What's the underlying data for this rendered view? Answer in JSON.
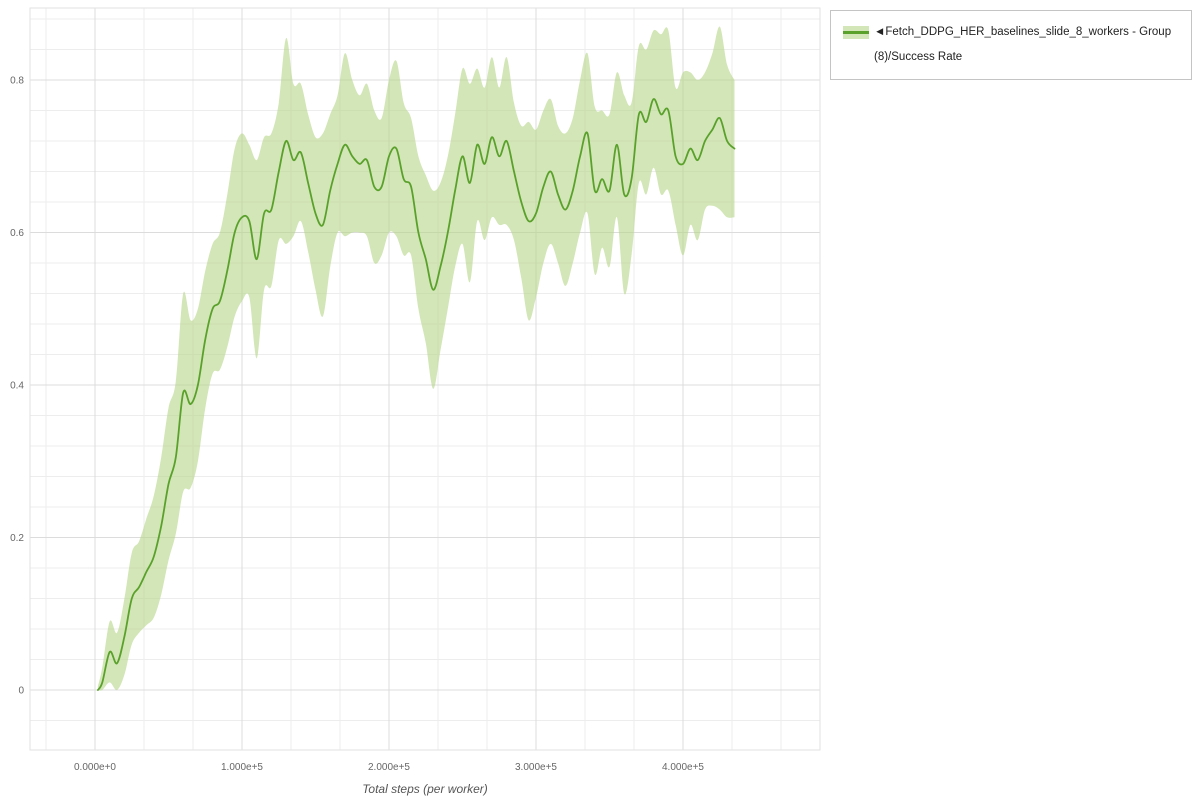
{
  "legend": {
    "label": "◄Fetch_DDPG_HER_baselines_slide_8_workers - Group (8)/Success Rate"
  },
  "axes": {
    "x_label": "Total steps (per worker)",
    "x_ticks": [
      "0.000e+0",
      "1.000e+5",
      "2.000e+5",
      "3.000e+5",
      "4.000e+5"
    ],
    "y_ticks": [
      "0",
      "0.2",
      "0.4",
      "0.6",
      "0.8"
    ]
  },
  "colors": {
    "line": "#5aa12c",
    "band": "#b5d687",
    "band_opacity": "0.6",
    "grid_minor": "#ededed",
    "grid_major": "#dcdcdc",
    "frame": "#e2e2e2",
    "tick_text": "#666666"
  },
  "chart_data": {
    "type": "line",
    "title": "",
    "xlabel": "Total steps (per worker)",
    "ylabel": "Success Rate",
    "xlim": [
      -44000,
      493000
    ],
    "ylim": [
      -0.079,
      0.894
    ],
    "x_tick_values": [
      0,
      100000,
      200000,
      300000,
      400000
    ],
    "y_tick_values": [
      0,
      0.2,
      0.4,
      0.6,
      0.8
    ],
    "grid": true,
    "legend_position": "top-right",
    "series": [
      {
        "name": "Fetch_DDPG_HER_baselines_slide_8_workers - Group (8)/Success Rate",
        "x": [
          2000,
          5000,
          10000,
          15000,
          20000,
          25000,
          30000,
          35000,
          40000,
          45000,
          50000,
          55000,
          60000,
          65000,
          70000,
          75000,
          80000,
          85000,
          90000,
          95000,
          100000,
          105000,
          110000,
          115000,
          120000,
          125000,
          130000,
          135000,
          140000,
          145000,
          150000,
          155000,
          160000,
          165000,
          170000,
          175000,
          180000,
          185000,
          190000,
          195000,
          200000,
          205000,
          210000,
          215000,
          220000,
          225000,
          230000,
          235000,
          240000,
          245000,
          250000,
          255000,
          260000,
          265000,
          270000,
          275000,
          280000,
          285000,
          290000,
          295000,
          300000,
          305000,
          310000,
          315000,
          320000,
          325000,
          330000,
          335000,
          340000,
          345000,
          350000,
          355000,
          360000,
          365000,
          370000,
          375000,
          380000,
          385000,
          390000,
          395000,
          400000,
          405000,
          410000,
          415000,
          420000,
          425000,
          430000,
          435000
        ],
        "mean": [
          0.0,
          0.01,
          0.05,
          0.035,
          0.07,
          0.12,
          0.135,
          0.155,
          0.175,
          0.215,
          0.27,
          0.305,
          0.39,
          0.375,
          0.4,
          0.46,
          0.5,
          0.51,
          0.55,
          0.6,
          0.62,
          0.615,
          0.565,
          0.625,
          0.63,
          0.68,
          0.72,
          0.695,
          0.705,
          0.665,
          0.625,
          0.61,
          0.655,
          0.69,
          0.715,
          0.7,
          0.69,
          0.695,
          0.66,
          0.66,
          0.7,
          0.71,
          0.67,
          0.66,
          0.6,
          0.565,
          0.525,
          0.555,
          0.6,
          0.655,
          0.7,
          0.665,
          0.715,
          0.69,
          0.725,
          0.7,
          0.72,
          0.68,
          0.64,
          0.615,
          0.625,
          0.66,
          0.68,
          0.65,
          0.63,
          0.655,
          0.7,
          0.73,
          0.655,
          0.67,
          0.655,
          0.715,
          0.65,
          0.67,
          0.755,
          0.745,
          0.775,
          0.755,
          0.76,
          0.7,
          0.69,
          0.71,
          0.695,
          0.72,
          0.735,
          0.75,
          0.72,
          0.71
        ],
        "band_halfwidth": [
          0.005,
          0.02,
          0.04,
          0.04,
          0.05,
          0.06,
          0.06,
          0.07,
          0.08,
          0.09,
          0.1,
          0.1,
          0.13,
          0.11,
          0.1,
          0.09,
          0.085,
          0.09,
          0.1,
          0.11,
          0.11,
          0.1,
          0.13,
          0.1,
          0.1,
          0.09,
          0.135,
          0.1,
          0.09,
          0.09,
          0.1,
          0.12,
          0.1,
          0.09,
          0.12,
          0.1,
          0.09,
          0.1,
          0.1,
          0.09,
          0.1,
          0.115,
          0.1,
          0.09,
          0.1,
          0.11,
          0.13,
          0.11,
          0.1,
          0.1,
          0.115,
          0.13,
          0.1,
          0.1,
          0.105,
          0.09,
          0.11,
          0.09,
          0.1,
          0.13,
          0.11,
          0.1,
          0.095,
          0.09,
          0.1,
          0.095,
          0.1,
          0.105,
          0.11,
          0.09,
          0.1,
          0.095,
          0.13,
          0.1,
          0.09,
          0.095,
          0.09,
          0.105,
          0.105,
          0.09,
          0.12,
          0.1,
          0.105,
          0.09,
          0.1,
          0.12,
          0.1,
          0.09
        ]
      }
    ]
  }
}
